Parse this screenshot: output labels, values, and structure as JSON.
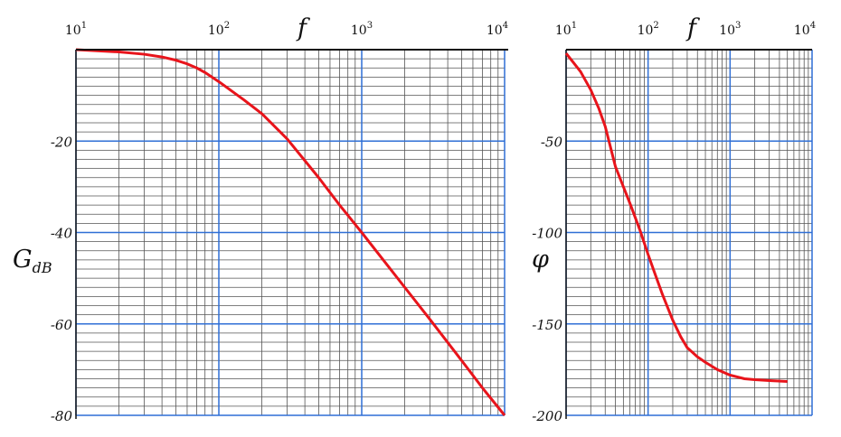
{
  "chart_data": [
    {
      "type": "line",
      "scale_x": "log",
      "xlim": [
        10,
        10000
      ],
      "ylim": [
        -80,
        0
      ],
      "x_ticks": [
        {
          "base": "10",
          "exp": "1"
        },
        {
          "base": "10",
          "exp": "2"
        },
        {
          "base": "10",
          "exp": "3"
        },
        {
          "base": "10",
          "exp": "4"
        }
      ],
      "y_ticks": [
        "-20",
        "-40",
        "-60",
        "-80"
      ],
      "xlabel": "f",
      "ylabel": {
        "main": "G",
        "sub": "dB"
      },
      "grid": true,
      "line_color": "#e8141b",
      "major_grid_color": "#2f6fd6",
      "minor_grid_color": "#555555",
      "series": [
        {
          "x": [
            10,
            20,
            30,
            40,
            50,
            60,
            70,
            80,
            100,
            150,
            200,
            300,
            500,
            700,
            1000,
            2000,
            3000,
            5000,
            7000,
            10000
          ],
          "y": [
            0,
            -0.5,
            -1,
            -1.6,
            -2.3,
            -3.1,
            -4,
            -5,
            -7,
            -11,
            -14,
            -19.5,
            -28,
            -34,
            -40,
            -52,
            -59,
            -68,
            -74,
            -80
          ]
        }
      ]
    },
    {
      "type": "line",
      "scale_x": "log",
      "xlim": [
        10,
        10000
      ],
      "ylim": [
        -200,
        0
      ],
      "x_ticks": [
        {
          "base": "10",
          "exp": "1"
        },
        {
          "base": "10",
          "exp": "2"
        },
        {
          "base": "10",
          "exp": "3"
        },
        {
          "base": "10",
          "exp": "4"
        }
      ],
      "y_ticks": [
        "-50",
        "-100",
        "-150",
        "-200"
      ],
      "xlabel": "f",
      "ylabel": {
        "main": "φ",
        "sub": ""
      },
      "grid": true,
      "line_color": "#e8141b",
      "major_grid_color": "#2f6fd6",
      "minor_grid_color": "#555555",
      "series": [
        {
          "x": [
            10,
            15,
            20,
            25,
            30,
            40,
            50,
            60,
            70,
            80,
            100,
            120,
            150,
            200,
            250,
            300,
            400,
            500,
            700,
            1000,
            1500,
            2000,
            3000,
            5000
          ],
          "y": [
            -2,
            -12,
            -22,
            -32,
            -42,
            -64,
            -75,
            -84,
            -92,
            -99,
            -112,
            -122,
            -134,
            -148,
            -157,
            -163,
            -168,
            -171,
            -175,
            -178,
            -180,
            -180.5,
            -181,
            -181.5
          ]
        }
      ]
    }
  ]
}
